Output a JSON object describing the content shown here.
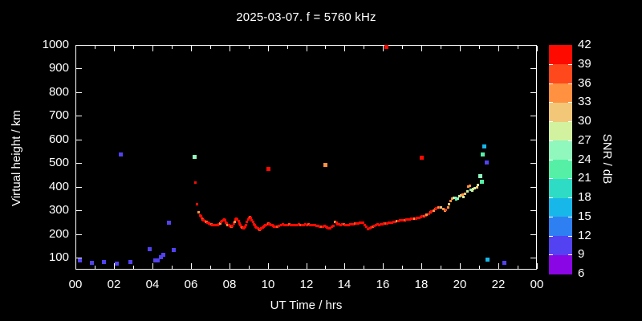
{
  "title": "2025-03-07. f = 5760 kHz",
  "chart_data": {
    "type": "scatter",
    "title": "2025-03-07. f = 5760 kHz",
    "xlabel": "UT Time / hrs",
    "ylabel": "Virtual height / km",
    "xlim": [
      0,
      24
    ],
    "ylim": [
      50,
      1000
    ],
    "grid": false,
    "x_minor_step": 1,
    "x_ticks": {
      "values": [
        0,
        2,
        4,
        6,
        8,
        10,
        12,
        14,
        16,
        18,
        20,
        22,
        24
      ],
      "labels": [
        "00",
        "02",
        "04",
        "06",
        "08",
        "10",
        "12",
        "14",
        "16",
        "18",
        "20",
        "22",
        "00"
      ]
    },
    "y_ticks": [
      100,
      200,
      300,
      400,
      500,
      600,
      700,
      800,
      900,
      1000
    ],
    "colorbar": {
      "label": "SNR / dB",
      "min": 6,
      "max": 42,
      "step": 3,
      "colors": [
        "#8a06e4",
        "#5242f2",
        "#2e7ff2",
        "#17b7e9",
        "#2edcc6",
        "#55f0a6",
        "#90f7bd",
        "#d2f2a0",
        "#f2c778",
        "#ff9140",
        "#ff481b",
        "#ff0a00"
      ]
    },
    "points_scattered": [
      [
        0.25,
        88,
        10
      ],
      [
        0.85,
        79,
        10
      ],
      [
        1.5,
        81,
        10
      ],
      [
        2.15,
        77,
        10
      ],
      [
        2.35,
        536,
        11
      ],
      [
        2.85,
        82,
        10
      ],
      [
        3.85,
        138,
        10
      ],
      [
        4.15,
        88,
        10
      ],
      [
        4.28,
        88,
        10
      ],
      [
        4.45,
        103,
        10
      ],
      [
        4.55,
        114,
        10
      ],
      [
        4.85,
        249,
        11
      ],
      [
        5.1,
        132,
        11
      ],
      [
        6.18,
        528,
        25
      ],
      [
        10.03,
        477,
        40
      ],
      [
        13.0,
        494,
        34
      ],
      [
        16.17,
        990,
        40
      ],
      [
        18.02,
        524,
        40
      ],
      [
        21.05,
        444,
        25
      ],
      [
        21.14,
        423,
        22
      ],
      [
        21.18,
        537,
        22
      ],
      [
        21.28,
        570,
        16
      ],
      [
        21.38,
        502,
        10
      ],
      [
        21.45,
        92,
        16
      ],
      [
        22.3,
        79,
        10
      ]
    ],
    "points_main_trace": [
      [
        6.23,
        417,
        40
      ],
      [
        6.33,
        325,
        40
      ],
      [
        6.42,
        291,
        35
      ],
      [
        6.47,
        280,
        40
      ],
      [
        6.52,
        274,
        40
      ],
      [
        6.57,
        268,
        40
      ],
      [
        6.62,
        263,
        37
      ],
      [
        6.67,
        259,
        40
      ],
      [
        6.72,
        256,
        40
      ],
      [
        6.77,
        253,
        40
      ],
      [
        6.82,
        251,
        35
      ],
      [
        6.87,
        249,
        40
      ],
      [
        6.92,
        247,
        40
      ],
      [
        6.97,
        245,
        40
      ],
      [
        7.02,
        243,
        40
      ],
      [
        7.07,
        241,
        37
      ],
      [
        7.12,
        240,
        40
      ],
      [
        7.17,
        238,
        40
      ],
      [
        7.25,
        237,
        40
      ],
      [
        7.33,
        237,
        40
      ],
      [
        7.4,
        239,
        40
      ],
      [
        7.47,
        242,
        40
      ],
      [
        7.53,
        246,
        35
      ],
      [
        7.58,
        251,
        40
      ],
      [
        7.63,
        256,
        40
      ],
      [
        7.68,
        260,
        40
      ],
      [
        7.73,
        263,
        40
      ],
      [
        7.78,
        258,
        40
      ],
      [
        7.83,
        250,
        40
      ],
      [
        7.88,
        244,
        40
      ],
      [
        7.93,
        240,
        35
      ],
      [
        7.98,
        237,
        40
      ],
      [
        8.03,
        234,
        40
      ],
      [
        8.08,
        231,
        40
      ],
      [
        8.13,
        232,
        37
      ],
      [
        8.18,
        236,
        40
      ],
      [
        8.23,
        244,
        40
      ],
      [
        8.28,
        253,
        35
      ],
      [
        8.33,
        261,
        40
      ],
      [
        8.38,
        265,
        40
      ],
      [
        8.43,
        263,
        40
      ],
      [
        8.48,
        255,
        40
      ],
      [
        8.53,
        246,
        40
      ],
      [
        8.58,
        238,
        40
      ],
      [
        8.63,
        232,
        40
      ],
      [
        8.68,
        229,
        37
      ],
      [
        8.73,
        226,
        40
      ],
      [
        8.78,
        227,
        40
      ],
      [
        8.83,
        231,
        40
      ],
      [
        8.88,
        240,
        40
      ],
      [
        8.93,
        252,
        40
      ],
      [
        8.98,
        262,
        40
      ],
      [
        9.03,
        269,
        40
      ],
      [
        9.08,
        272,
        37
      ],
      [
        9.13,
        268,
        40
      ],
      [
        9.18,
        260,
        40
      ],
      [
        9.23,
        251,
        40
      ],
      [
        9.28,
        243,
        40
      ],
      [
        9.33,
        237,
        40
      ],
      [
        9.38,
        232,
        40
      ],
      [
        9.43,
        228,
        40
      ],
      [
        9.48,
        224,
        40
      ],
      [
        9.53,
        221,
        40
      ],
      [
        9.58,
        219,
        37
      ],
      [
        9.63,
        221,
        40
      ],
      [
        9.68,
        224,
        40
      ],
      [
        9.73,
        227,
        40
      ],
      [
        9.78,
        230,
        40
      ],
      [
        9.83,
        234,
        40
      ],
      [
        9.88,
        237,
        40
      ],
      [
        9.93,
        240,
        40
      ],
      [
        9.98,
        242,
        40
      ],
      [
        10.03,
        244,
        37
      ],
      [
        10.08,
        243,
        40
      ],
      [
        10.13,
        241,
        40
      ],
      [
        10.18,
        239,
        40
      ],
      [
        10.23,
        237,
        40
      ],
      [
        10.28,
        235,
        40
      ],
      [
        10.33,
        233,
        40
      ],
      [
        10.4,
        232,
        40
      ],
      [
        10.5,
        233,
        37
      ],
      [
        10.6,
        236,
        40
      ],
      [
        10.7,
        239,
        40
      ],
      [
        10.78,
        242,
        40
      ],
      [
        10.87,
        240,
        40
      ],
      [
        10.95,
        238,
        40
      ],
      [
        11.03,
        240,
        40
      ],
      [
        11.12,
        242,
        37
      ],
      [
        11.2,
        239,
        40
      ],
      [
        11.28,
        237,
        40
      ],
      [
        11.37,
        239,
        40
      ],
      [
        11.45,
        238,
        40
      ],
      [
        11.53,
        240,
        40
      ],
      [
        11.62,
        242,
        40
      ],
      [
        11.7,
        240,
        37
      ],
      [
        11.78,
        238,
        40
      ],
      [
        11.87,
        239,
        40
      ],
      [
        11.95,
        241,
        40
      ],
      [
        12.03,
        240,
        40
      ],
      [
        12.12,
        242,
        37
      ],
      [
        12.2,
        239,
        40
      ],
      [
        12.28,
        237,
        40
      ],
      [
        12.37,
        240,
        40
      ],
      [
        12.45,
        238,
        40
      ],
      [
        12.53,
        236,
        40
      ],
      [
        12.62,
        234,
        40
      ],
      [
        12.7,
        232,
        40
      ],
      [
        12.78,
        230,
        37
      ],
      [
        12.87,
        233,
        40
      ],
      [
        12.95,
        236,
        40
      ],
      [
        13.03,
        232,
        40
      ],
      [
        13.1,
        228,
        40
      ],
      [
        13.17,
        224,
        40
      ],
      [
        13.25,
        226,
        40
      ],
      [
        13.33,
        230,
        40
      ],
      [
        13.42,
        235,
        40
      ],
      [
        13.5,
        251,
        35
      ],
      [
        13.57,
        247,
        40
      ],
      [
        13.63,
        243,
        40
      ],
      [
        13.72,
        241,
        40
      ],
      [
        13.8,
        240,
        40
      ],
      [
        13.88,
        242,
        40
      ],
      [
        13.97,
        241,
        37
      ],
      [
        14.05,
        240,
        40
      ],
      [
        14.13,
        239,
        40
      ],
      [
        14.22,
        240,
        40
      ],
      [
        14.3,
        241,
        40
      ],
      [
        14.38,
        242,
        40
      ],
      [
        14.47,
        243,
        40
      ],
      [
        14.55,
        244,
        37
      ],
      [
        14.63,
        245,
        40
      ],
      [
        14.72,
        246,
        40
      ],
      [
        14.8,
        247,
        40
      ],
      [
        14.88,
        248,
        40
      ],
      [
        14.97,
        249,
        40
      ],
      [
        15.05,
        240,
        40
      ],
      [
        15.12,
        230,
        40
      ],
      [
        15.2,
        223,
        40
      ],
      [
        15.28,
        225,
        40
      ],
      [
        15.37,
        228,
        40
      ],
      [
        15.45,
        232,
        37
      ],
      [
        15.53,
        236,
        40
      ],
      [
        15.62,
        240,
        40
      ],
      [
        15.7,
        242,
        40
      ],
      [
        15.78,
        239,
        40
      ],
      [
        15.87,
        241,
        40
      ],
      [
        15.95,
        243,
        40
      ],
      [
        16.03,
        244,
        40
      ],
      [
        16.12,
        245,
        37
      ],
      [
        16.2,
        246,
        40
      ],
      [
        16.28,
        247,
        40
      ],
      [
        16.37,
        248,
        40
      ],
      [
        16.45,
        250,
        40
      ],
      [
        16.53,
        251,
        40
      ],
      [
        16.62,
        253,
        40
      ],
      [
        16.7,
        254,
        35
      ],
      [
        16.78,
        256,
        40
      ],
      [
        16.87,
        257,
        40
      ],
      [
        16.95,
        258,
        40
      ],
      [
        17.03,
        259,
        40
      ],
      [
        17.12,
        260,
        37
      ],
      [
        17.2,
        261,
        40
      ],
      [
        17.28,
        262,
        40
      ],
      [
        17.37,
        263,
        40
      ],
      [
        17.45,
        264,
        40
      ],
      [
        17.53,
        265,
        40
      ],
      [
        17.62,
        266,
        35
      ],
      [
        17.7,
        267,
        40
      ],
      [
        17.78,
        269,
        40
      ],
      [
        17.87,
        270,
        40
      ],
      [
        17.95,
        272,
        40
      ],
      [
        18.03,
        274,
        40
      ],
      [
        18.12,
        276,
        37
      ],
      [
        18.2,
        279,
        40
      ],
      [
        18.28,
        282,
        35
      ],
      [
        18.37,
        286,
        40
      ],
      [
        18.45,
        291,
        37
      ],
      [
        18.53,
        296,
        40
      ],
      [
        18.62,
        301,
        35
      ],
      [
        18.7,
        306,
        37
      ],
      [
        18.78,
        310,
        40
      ],
      [
        18.87,
        312,
        34
      ],
      [
        18.95,
        314,
        37
      ],
      [
        19.03,
        313,
        31
      ],
      [
        19.12,
        306,
        34
      ],
      [
        19.2,
        298,
        34
      ],
      [
        19.28,
        303,
        37
      ],
      [
        19.37,
        313,
        34
      ],
      [
        19.45,
        328,
        31
      ],
      [
        19.53,
        341,
        34
      ],
      [
        19.6,
        349,
        34
      ],
      [
        19.68,
        355,
        28
      ],
      [
        19.75,
        352,
        25
      ],
      [
        19.82,
        346,
        22
      ],
      [
        19.9,
        351,
        25
      ],
      [
        19.98,
        360,
        28
      ],
      [
        20.05,
        365,
        31
      ],
      [
        20.13,
        368,
        34
      ],
      [
        20.2,
        358,
        28
      ],
      [
        20.28,
        371,
        31
      ],
      [
        20.37,
        381,
        28
      ],
      [
        20.45,
        401,
        34
      ],
      [
        20.5,
        406,
        34
      ],
      [
        20.55,
        388,
        25
      ],
      [
        20.63,
        384,
        28
      ],
      [
        20.7,
        390,
        28
      ],
      [
        20.78,
        394,
        28
      ],
      [
        20.87,
        398,
        31
      ],
      [
        20.95,
        408,
        28
      ]
    ]
  }
}
